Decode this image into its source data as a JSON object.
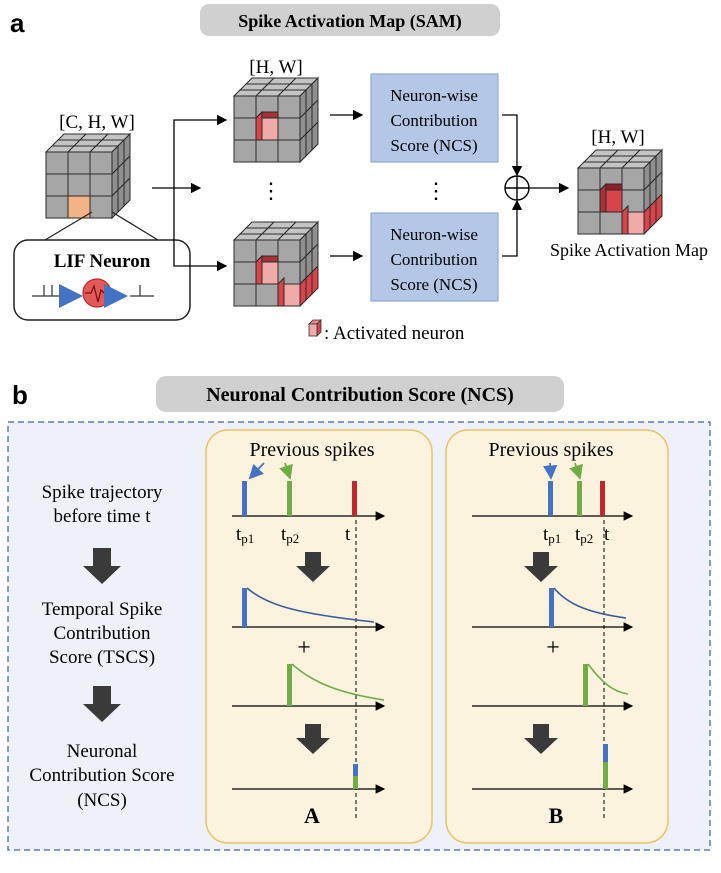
{
  "panel_a": {
    "letter": "a",
    "title": "Spike Activation Map (SAM)",
    "input_shape": "[C, H, W]",
    "map_shape_top": "[H, W]",
    "map_shape_out": "[H, W]",
    "lif_label": "LIF Neuron",
    "ncs_box": [
      "Neuron-wise",
      "Contribution",
      "Score (NCS)"
    ],
    "dots": "⋮",
    "sum_symbol": "⊕",
    "output_label": "Spike Activation Map",
    "legend_text": ": Activated neuron"
  },
  "panel_b": {
    "letter": "b",
    "title": "Neuronal Contribution Score (NCS)",
    "steps": {
      "trajectory": [
        "Spike trajectory",
        "before time t"
      ],
      "tscs": [
        "Temporal Spike",
        "Contribution",
        "Score (TSCS)"
      ],
      "ncs": [
        "Neuronal",
        "Contribution Score",
        "(NCS)"
      ]
    },
    "previous_spikes": "Previous spikes",
    "tick_t": "t",
    "plus": "+",
    "case_A": "A",
    "case_B": "B"
  },
  "colors": {
    "cube_face": "#a6a6a6",
    "active_red": "#d9434a",
    "active_light": "#f0aaa8",
    "orange_neuron": "#f2b487",
    "ncs_fill": "#b4c7e7",
    "ncs_border": "#8ea9d0",
    "title_pill": "#d0d0d0",
    "blue_spike": "#4472c4",
    "green_spike": "#70ad47",
    "red_spike": "#c0282d",
    "card_fill": "#fbf3dd",
    "card_border": "#e9c46a",
    "dashed_border": "#5a7fb8",
    "dark_arrow": "#3a3a3a"
  }
}
